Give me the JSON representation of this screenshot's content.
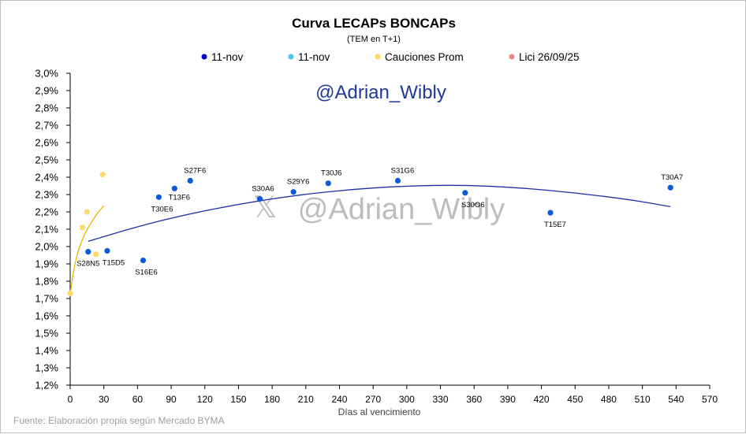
{
  "chart_data": {
    "type": "scatter",
    "title": "Curva LECAPs BONCAPs",
    "subtitle": "(TEM en T+1)",
    "xlabel": "Días al vencimiento",
    "ylabel": "",
    "xlim": [
      0,
      570
    ],
    "ylim": [
      1.2,
      3.0
    ],
    "x_ticks": [
      "0",
      "30",
      "60",
      "90",
      "120",
      "150",
      "180",
      "210",
      "240",
      "270",
      "300",
      "330",
      "360",
      "390",
      "420",
      "450",
      "480",
      "510",
      "540",
      "570"
    ],
    "y_ticks": [
      "1,2%",
      "1,3%",
      "1,4%",
      "1,5%",
      "1,6%",
      "1,7%",
      "1,8%",
      "1,9%",
      "2,0%",
      "2,1%",
      "2,2%",
      "2,3%",
      "2,4%",
      "2,5%",
      "2,6%",
      "2,7%",
      "2,8%",
      "2,9%",
      "3,0%"
    ],
    "grid": false,
    "legend": [
      {
        "name": "11-nov",
        "color": "#0000cc"
      },
      {
        "name": "11-nov",
        "color": "#4fc3f7"
      },
      {
        "name": "Cauciones Prom",
        "color": "#ffd966"
      },
      {
        "name": "Lici 26/09/25",
        "color": "#f28080"
      }
    ],
    "series": [
      {
        "name": "11-nov",
        "color": "#0b5bd8",
        "points": [
          {
            "label": "S28N5",
            "x": 16,
            "y": 1.97
          },
          {
            "label": "T15D5",
            "x": 33,
            "y": 1.975
          },
          {
            "label": "S16E6",
            "x": 65,
            "y": 1.92
          },
          {
            "label": "T30E6",
            "x": 79,
            "y": 2.285
          },
          {
            "label": "T13F6",
            "x": 93,
            "y": 2.335
          },
          {
            "label": "S27F6",
            "x": 107,
            "y": 2.38
          },
          {
            "label": "S30A6",
            "x": 169,
            "y": 2.275
          },
          {
            "label": "S29Y6",
            "x": 199,
            "y": 2.315
          },
          {
            "label": "T30J6",
            "x": 230,
            "y": 2.365
          },
          {
            "label": "S31G6",
            "x": 292,
            "y": 2.38
          },
          {
            "label": "S30O6",
            "x": 352,
            "y": 2.31
          },
          {
            "label": "T15E7",
            "x": 428,
            "y": 2.195
          },
          {
            "label": "T30A7",
            "x": 535,
            "y": 2.34
          }
        ]
      },
      {
        "name": "Cauciones Prom",
        "color": "#ffd966",
        "points": [
          {
            "x": 0,
            "y": 1.73
          },
          {
            "x": 11,
            "y": 2.11
          },
          {
            "x": 15,
            "y": 2.2
          },
          {
            "x": 23,
            "y": 1.955
          },
          {
            "x": 29,
            "y": 2.415
          }
        ]
      }
    ],
    "trendlines": [
      {
        "series": "11-nov",
        "color": "#1f2fa8",
        "points": [
          [
            16,
            2.03
          ],
          [
            60,
            2.115
          ],
          [
            100,
            2.18
          ],
          [
            150,
            2.245
          ],
          [
            200,
            2.295
          ],
          [
            250,
            2.33
          ],
          [
            300,
            2.35
          ],
          [
            350,
            2.355
          ],
          [
            400,
            2.34
          ],
          [
            450,
            2.31
          ],
          [
            500,
            2.27
          ],
          [
            535,
            2.23
          ]
        ]
      },
      {
        "series": "Cauciones Prom",
        "color": "#e6b800",
        "points": [
          [
            0,
            1.73
          ],
          [
            3,
            1.86
          ],
          [
            6,
            1.95
          ],
          [
            10,
            2.03
          ],
          [
            15,
            2.1
          ],
          [
            20,
            2.15
          ],
          [
            25,
            2.2
          ],
          [
            30,
            2.235
          ]
        ]
      }
    ]
  },
  "watermark_handle": "@Adrian_Wibly",
  "watermark_center": "@Adrian_Wibly",
  "watermark_x_glyph": "𝕏",
  "source": "Fuente: Elaboración propia según Mercado BYMA"
}
